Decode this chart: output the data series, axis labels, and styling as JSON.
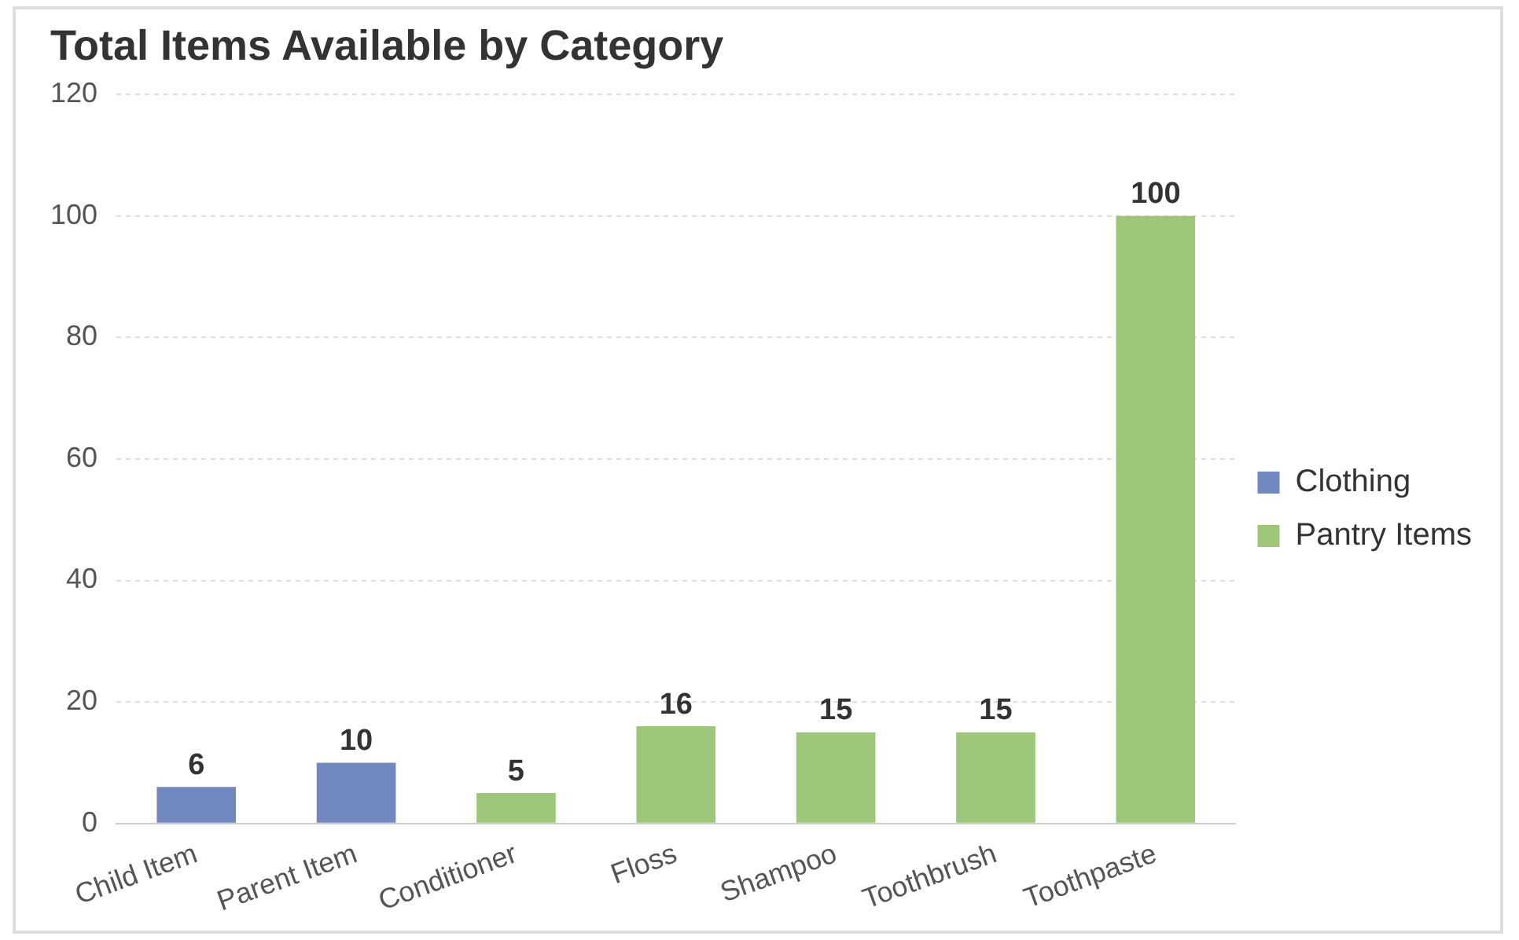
{
  "chart_data": {
    "type": "bar",
    "title": "Total Items Available by Category",
    "categories": [
      "Child Item",
      "Parent Item",
      "Conditioner",
      "Floss",
      "Shampoo",
      "Toothbrush",
      "Toothpaste"
    ],
    "series": [
      {
        "name": "Clothing",
        "color": "#7189bf",
        "values": [
          6,
          10,
          null,
          null,
          null,
          null,
          null
        ]
      },
      {
        "name": "Pantry Items",
        "color": "#9dc67a",
        "values": [
          null,
          null,
          5,
          16,
          15,
          15,
          100
        ]
      }
    ],
    "ylim": [
      0,
      120
    ],
    "yticks": [
      0,
      20,
      40,
      60,
      80,
      100,
      120
    ],
    "grid": "y",
    "legend": "right",
    "data_labels": true
  }
}
